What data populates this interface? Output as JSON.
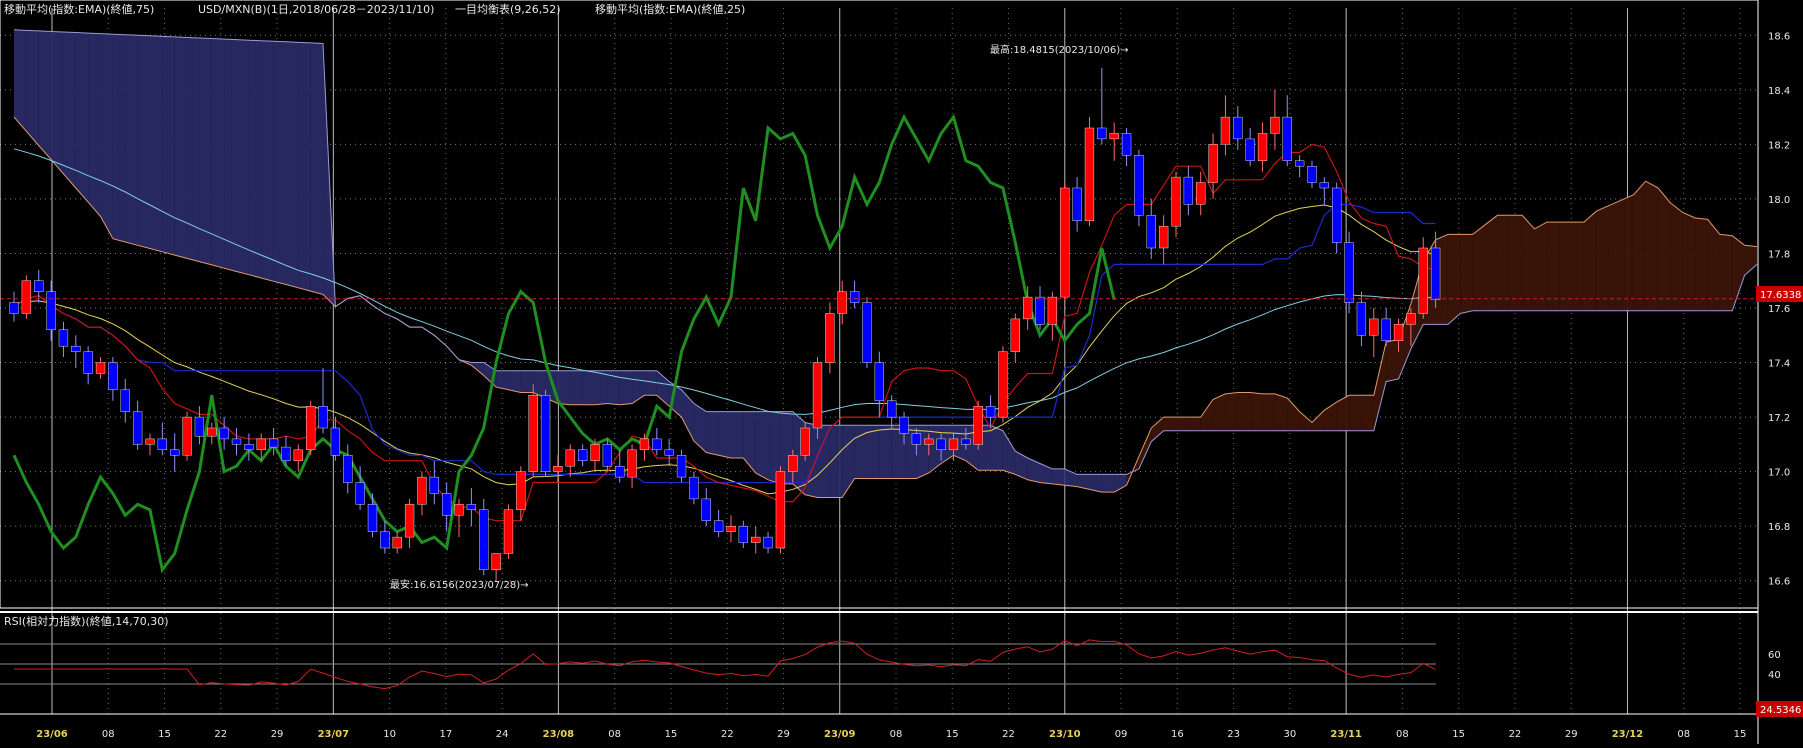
{
  "header": {
    "ema75_label": "移動平均(指数:EMA)(終値,75)",
    "symbol_label": "USD/MXN(B)(1日,2018/06/28－2023/11/10)",
    "ichimoku_label": "一目均衡表(9,26,52)",
    "ema25_label": "移動平均(指数:EMA)(終値,25)"
  },
  "annotations": {
    "high_label": "最高:18.4815(2023/10/06)→",
    "low_label": "最安:16.6156(2023/07/28)→"
  },
  "price_axis": {
    "ticks": [
      "18.6",
      "18.4",
      "18.2",
      "18.0",
      "17.8",
      "17.6",
      "17.4",
      "17.2",
      "17.0",
      "16.8",
      "16.6"
    ],
    "current_price_label": "17.6338",
    "current_price": 17.6338
  },
  "rsi_panel": {
    "title": "RSI(相対力指数)(終値,14,70,30)",
    "ticks": [
      "60",
      "40"
    ],
    "current_label": "24.5346"
  },
  "date_axis": {
    "labels": [
      "23/06",
      "08",
      "15",
      "22",
      "29",
      "23/07",
      "10",
      "17",
      "24",
      "23/08",
      "08",
      "15",
      "22",
      "29",
      "23/09",
      "08",
      "15",
      "22",
      "23/10",
      "09",
      "16",
      "23",
      "30",
      "23/11",
      "08",
      "15",
      "22",
      "29",
      "23/12",
      "08",
      "15"
    ],
    "month_labels": [
      "23/06",
      "23/07",
      "23/08",
      "23/09",
      "23/10",
      "23/11",
      "23/12"
    ]
  },
  "colors": {
    "up_candle": "#ff0000",
    "down_candle": "#0000ff",
    "ema25": "#e6d25a",
    "ema75": "#7fd0e0",
    "lagging_span": "#1f8f1f",
    "tenkan": "#c81414",
    "kijun": "#1a2ad0",
    "bull_cloud": "#2a2a66",
    "bear_cloud": "#3a1408",
    "rsi_line": "#d02020"
  },
  "chart_data": {
    "type": "candlestick",
    "ylim": [
      16.5,
      18.7
    ],
    "high": {
      "value": 18.4815,
      "date": "2023/10/06"
    },
    "low": {
      "value": 16.6156,
      "date": "2023/07/28"
    },
    "candles": [
      [
        17.62,
        17.66,
        17.55,
        17.58
      ],
      [
        17.58,
        17.72,
        17.56,
        17.7
      ],
      [
        17.7,
        17.74,
        17.62,
        17.66
      ],
      [
        17.66,
        17.7,
        17.48,
        17.52
      ],
      [
        17.52,
        17.55,
        17.42,
        17.46
      ],
      [
        17.46,
        17.5,
        17.38,
        17.44
      ],
      [
        17.44,
        17.46,
        17.32,
        17.36
      ],
      [
        17.36,
        17.42,
        17.34,
        17.4
      ],
      [
        17.4,
        17.42,
        17.26,
        17.3
      ],
      [
        17.3,
        17.34,
        17.18,
        17.22
      ],
      [
        17.22,
        17.26,
        17.08,
        17.1
      ],
      [
        17.1,
        17.14,
        17.06,
        17.12
      ],
      [
        17.12,
        17.18,
        17.06,
        17.08
      ],
      [
        17.08,
        17.14,
        17.0,
        17.06
      ],
      [
        17.06,
        17.22,
        17.04,
        17.2
      ],
      [
        17.2,
        17.24,
        17.1,
        17.13
      ],
      [
        17.13,
        17.18,
        17.1,
        17.16
      ],
      [
        17.16,
        17.2,
        17.08,
        17.12
      ],
      [
        17.12,
        17.16,
        17.06,
        17.1
      ],
      [
        17.1,
        17.14,
        17.04,
        17.08
      ],
      [
        17.08,
        17.14,
        17.04,
        17.12
      ],
      [
        17.12,
        17.16,
        17.06,
        17.09
      ],
      [
        17.09,
        17.13,
        17.02,
        17.04
      ],
      [
        17.04,
        17.1,
        17.0,
        17.08
      ],
      [
        17.08,
        17.26,
        17.06,
        17.24
      ],
      [
        17.24,
        17.38,
        17.14,
        17.16
      ],
      [
        17.16,
        17.2,
        17.04,
        17.06
      ],
      [
        17.06,
        17.1,
        16.92,
        16.96
      ],
      [
        16.96,
        17.02,
        16.86,
        16.88
      ],
      [
        16.88,
        16.92,
        16.76,
        16.78
      ],
      [
        16.78,
        16.82,
        16.7,
        16.72
      ],
      [
        16.72,
        16.78,
        16.7,
        16.76
      ],
      [
        16.76,
        16.9,
        16.72,
        16.88
      ],
      [
        16.88,
        17.0,
        16.84,
        16.98
      ],
      [
        16.98,
        17.04,
        16.88,
        16.92
      ],
      [
        16.92,
        16.96,
        16.78,
        16.84
      ],
      [
        16.84,
        16.9,
        16.76,
        16.88
      ],
      [
        16.88,
        16.94,
        16.8,
        16.86
      ],
      [
        16.86,
        16.9,
        16.62,
        16.64
      ],
      [
        16.64,
        16.7,
        16.6,
        16.7
      ],
      [
        16.7,
        16.88,
        16.68,
        16.86
      ],
      [
        16.86,
        17.02,
        16.82,
        17.0
      ],
      [
        17.0,
        17.32,
        16.98,
        17.28
      ],
      [
        17.28,
        17.3,
        16.98,
        17.0
      ],
      [
        17.0,
        17.06,
        16.96,
        17.02
      ],
      [
        17.02,
        17.1,
        16.98,
        17.08
      ],
      [
        17.08,
        17.1,
        17.02,
        17.04
      ],
      [
        17.04,
        17.12,
        17.0,
        17.1
      ],
      [
        17.1,
        17.12,
        17.0,
        17.02
      ],
      [
        17.02,
        17.08,
        16.96,
        16.98
      ],
      [
        16.98,
        17.1,
        16.94,
        17.08
      ],
      [
        17.08,
        17.14,
        17.04,
        17.12
      ],
      [
        17.12,
        17.16,
        17.06,
        17.08
      ],
      [
        17.08,
        17.12,
        17.02,
        17.06
      ],
      [
        17.06,
        17.08,
        16.96,
        16.98
      ],
      [
        16.98,
        17.0,
        16.88,
        16.9
      ],
      [
        16.9,
        16.94,
        16.8,
        16.82
      ],
      [
        16.82,
        16.86,
        16.76,
        16.78
      ],
      [
        16.78,
        16.84,
        16.74,
        16.8
      ],
      [
        16.8,
        16.82,
        16.72,
        16.74
      ],
      [
        16.74,
        16.8,
        16.7,
        16.76
      ],
      [
        16.76,
        16.78,
        16.7,
        16.72
      ],
      [
        16.72,
        17.02,
        16.7,
        17.0
      ],
      [
        17.0,
        17.08,
        16.96,
        17.06
      ],
      [
        17.06,
        17.18,
        17.04,
        17.16
      ],
      [
        17.16,
        17.42,
        17.12,
        17.4
      ],
      [
        17.4,
        17.62,
        17.36,
        17.58
      ],
      [
        17.58,
        17.7,
        17.54,
        17.66
      ],
      [
        17.66,
        17.7,
        17.6,
        17.62
      ],
      [
        17.62,
        17.64,
        17.38,
        17.4
      ],
      [
        17.4,
        17.44,
        17.2,
        17.26
      ],
      [
        17.26,
        17.28,
        17.16,
        17.2
      ],
      [
        17.2,
        17.22,
        17.1,
        17.14
      ],
      [
        17.14,
        17.16,
        17.06,
        17.1
      ],
      [
        17.1,
        17.14,
        17.06,
        17.12
      ],
      [
        17.12,
        17.14,
        17.04,
        17.08
      ],
      [
        17.08,
        17.14,
        17.04,
        17.12
      ],
      [
        17.12,
        17.16,
        17.08,
        17.1
      ],
      [
        17.1,
        17.26,
        17.08,
        17.24
      ],
      [
        17.24,
        17.28,
        17.16,
        17.2
      ],
      [
        17.2,
        17.46,
        17.18,
        17.44
      ],
      [
        17.44,
        17.58,
        17.4,
        17.56
      ],
      [
        17.56,
        17.68,
        17.52,
        17.64
      ],
      [
        17.64,
        17.68,
        17.52,
        17.54
      ],
      [
        17.54,
        17.66,
        17.48,
        17.64
      ],
      [
        17.64,
        18.06,
        17.62,
        18.04
      ],
      [
        18.04,
        18.08,
        17.88,
        17.92
      ],
      [
        17.92,
        18.3,
        17.9,
        18.26
      ],
      [
        18.26,
        18.48,
        18.2,
        18.22
      ],
      [
        18.22,
        18.28,
        18.14,
        18.24
      ],
      [
        18.24,
        18.26,
        18.12,
        18.16
      ],
      [
        18.16,
        18.18,
        17.9,
        17.94
      ],
      [
        17.94,
        18.0,
        17.78,
        17.82
      ],
      [
        17.82,
        17.94,
        17.76,
        17.9
      ],
      [
        17.9,
        18.1,
        17.86,
        18.08
      ],
      [
        18.08,
        18.12,
        17.94,
        17.98
      ],
      [
        17.98,
        18.1,
        17.94,
        18.06
      ],
      [
        18.06,
        18.24,
        18.0,
        18.2
      ],
      [
        18.2,
        18.38,
        18.16,
        18.3
      ],
      [
        18.3,
        18.34,
        18.18,
        18.22
      ],
      [
        18.22,
        18.26,
        18.12,
        18.14
      ],
      [
        18.14,
        18.28,
        18.1,
        18.24
      ],
      [
        18.24,
        18.4,
        18.18,
        18.3
      ],
      [
        18.3,
        18.38,
        18.12,
        18.14
      ],
      [
        18.14,
        18.16,
        18.08,
        18.12
      ],
      [
        18.12,
        18.14,
        18.04,
        18.06
      ],
      [
        18.06,
        18.08,
        17.98,
        18.04
      ],
      [
        18.04,
        18.06,
        17.8,
        17.84
      ],
      [
        17.84,
        17.88,
        17.58,
        17.62
      ],
      [
        17.62,
        17.66,
        17.46,
        17.5
      ],
      [
        17.5,
        17.6,
        17.42,
        17.56
      ],
      [
        17.56,
        17.6,
        17.46,
        17.48
      ],
      [
        17.48,
        17.56,
        17.44,
        17.54
      ],
      [
        17.54,
        17.6,
        17.46,
        17.58
      ],
      [
        17.58,
        17.86,
        17.56,
        17.82
      ],
      [
        17.82,
        17.88,
        17.6,
        17.63
      ]
    ]
  }
}
